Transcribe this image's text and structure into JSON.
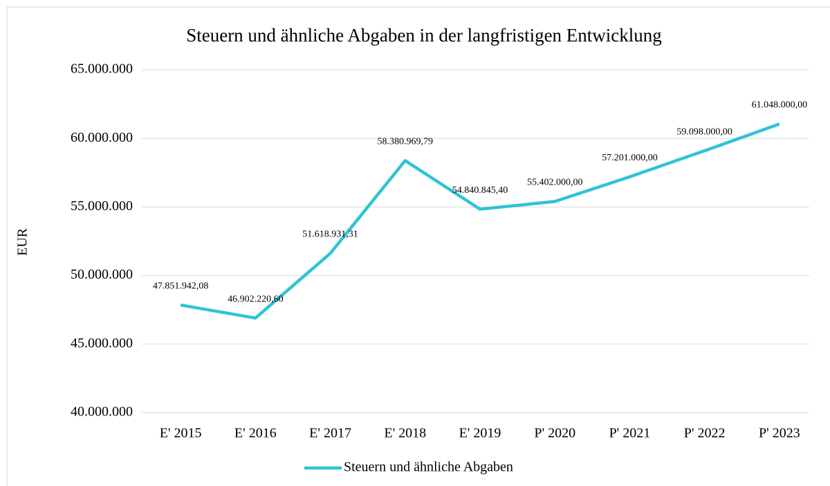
{
  "chart_data": {
    "type": "line",
    "title": "Steuern und ähnliche Abgaben in der langfristigen Entwicklung",
    "y_label": "EUR",
    "categories": [
      "E' 2015",
      "E' 2016",
      "E' 2017",
      "E' 2018",
      "E' 2019",
      "P' 2020",
      "P' 2021",
      "P' 2022",
      "P' 2023"
    ],
    "series": [
      {
        "name": "Steuern und ähnliche Abgaben",
        "color": "#2fc3d5",
        "values": [
          47851942.08,
          46902220.6,
          51618931.31,
          58380969.79,
          54840845.4,
          55402000,
          57201000,
          59098000,
          61048000
        ],
        "value_labels": [
          "47.851.942,08",
          "46.902.220,60",
          "51.618.931,31",
          "58.380.969,79",
          "54.840.845,40",
          "55.402.000,00",
          "57.201.000,00",
          "59.098.000,00",
          "61.048.000,00"
        ]
      }
    ],
    "ylim": [
      40000000,
      65000000
    ],
    "yticks": [
      {
        "value": 40000000,
        "label": "40.000.000"
      },
      {
        "value": 45000000,
        "label": "45.000.000"
      },
      {
        "value": 50000000,
        "label": "50.000.000"
      },
      {
        "value": 55000000,
        "label": "55.000.000"
      },
      {
        "value": 60000000,
        "label": "60.000.000"
      },
      {
        "value": 65000000,
        "label": "65.000.000"
      }
    ],
    "grid": true,
    "legend": "bottom"
  }
}
